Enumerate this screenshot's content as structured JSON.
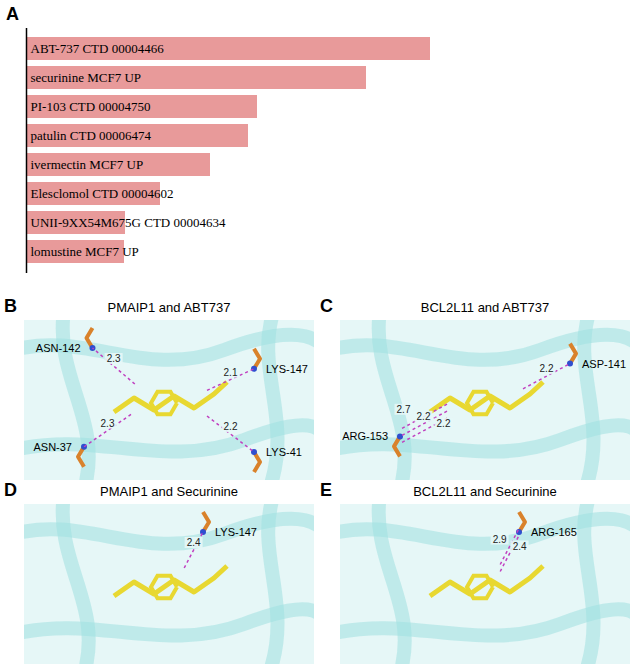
{
  "chart_data": {
    "type": "bar",
    "orientation": "horizontal",
    "categories": [
      "ABT-737 CTD 00004466",
      "securinine MCF7 UP",
      "PI-103 CTD 00004750",
      "patulin CTD 00006474",
      "ivermectin MCF7 UP",
      "Elesclomol CTD 00004602",
      "UNII-9XX54M675G CTD 00004634",
      "lomustine MCF7 UP"
    ],
    "values": [
      404,
      340,
      231,
      222,
      184,
      134,
      99,
      98
    ],
    "color": "#e89a9a",
    "xlim": [
      0,
      404
    ],
    "tick_labels": false
  },
  "panel_letter": "A",
  "docking_panels": [
    {
      "letter": "B",
      "title": "PMAIP1 and ABT737",
      "interactions": [
        {
          "residue": "ASN-142",
          "distances": [
            2.3
          ]
        },
        {
          "residue": "LYS-147",
          "distances": [
            2.1
          ]
        },
        {
          "residue": "LYS-41",
          "distances": [
            2.2
          ]
        },
        {
          "residue": "ASN-37",
          "distances": [
            2.3
          ]
        }
      ]
    },
    {
      "letter": "C",
      "title": "BCL2L11 and ABT737",
      "interactions": [
        {
          "residue": "ASP-141",
          "distances": [
            2.2
          ]
        },
        {
          "residue": "ARG-153",
          "distances": [
            2.7,
            2.2,
            2.2
          ]
        }
      ]
    },
    {
      "letter": "D",
      "title": "PMAIP1 and Securinine",
      "interactions": [
        {
          "residue": "LYS-147",
          "distances": [
            2.4
          ]
        }
      ]
    },
    {
      "letter": "E",
      "title": "BCL2L11 and Securinine",
      "interactions": [
        {
          "residue": "ARG-165",
          "distances": [
            2.9,
            2.4
          ]
        }
      ]
    }
  ]
}
